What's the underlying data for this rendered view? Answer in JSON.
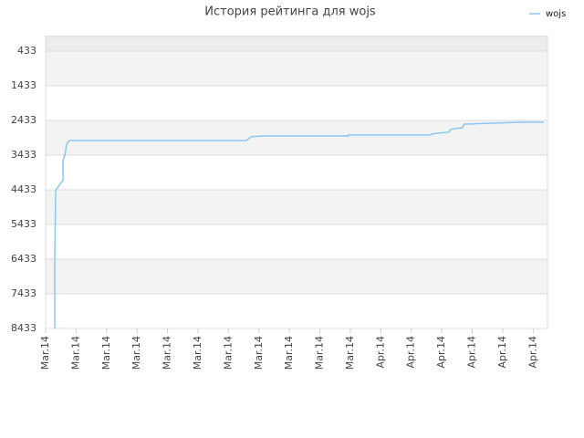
{
  "chart_data": {
    "type": "line",
    "title": "История рейтинга для wojs",
    "x": [
      0.3,
      0.3,
      0.33,
      0.34,
      0.57,
      0.57,
      0.63,
      0.69,
      0.78,
      6.59,
      6.65,
      6.77,
      7.13,
      9.94,
      9.94,
      12.63,
      12.69,
      12.87,
      13.23,
      13.29,
      13.68,
      13.74,
      14.58,
      15.72,
      16.35
    ],
    "series": [
      {
        "name": "wojs",
        "color": "#8ec6f2",
        "values": [
          8433,
          6433,
          4433,
          4433,
          4150,
          3600,
          3433,
          3120,
          3010,
          3010,
          2960,
          2900,
          2880,
          2880,
          2850,
          2850,
          2820,
          2800,
          2770,
          2690,
          2640,
          2540,
          2510,
          2480,
          2480
        ]
      }
    ],
    "ylim": [
      8433,
      0
    ],
    "yticks": [
      433,
      1433,
      2433,
      3433,
      4433,
      5433,
      6433,
      7433,
      8433
    ],
    "xlim": [
      0,
      16.47
    ],
    "xticks": [
      {
        "value": 0,
        "label": "Mar.14"
      },
      {
        "value": 1,
        "label": "Mar.14"
      },
      {
        "value": 2,
        "label": "Mar.14"
      },
      {
        "value": 3,
        "label": "Mar.14"
      },
      {
        "value": 4,
        "label": "Mar.14"
      },
      {
        "value": 5,
        "label": "Mar.14"
      },
      {
        "value": 6,
        "label": "Mar.14"
      },
      {
        "value": 7,
        "label": "Mar.14"
      },
      {
        "value": 8,
        "label": "Mar.14"
      },
      {
        "value": 9,
        "label": "Mar.14"
      },
      {
        "value": 10,
        "label": "Mar.14"
      },
      {
        "value": 11,
        "label": "Apr.14"
      },
      {
        "value": 12,
        "label": "Apr.14"
      },
      {
        "value": 13,
        "label": "Apr.14"
      },
      {
        "value": 14,
        "label": "Apr.14"
      },
      {
        "value": 15,
        "label": "Apr.14"
      },
      {
        "value": 16,
        "label": "Apr.14"
      }
    ],
    "grid": true,
    "legend": "top-right"
  }
}
